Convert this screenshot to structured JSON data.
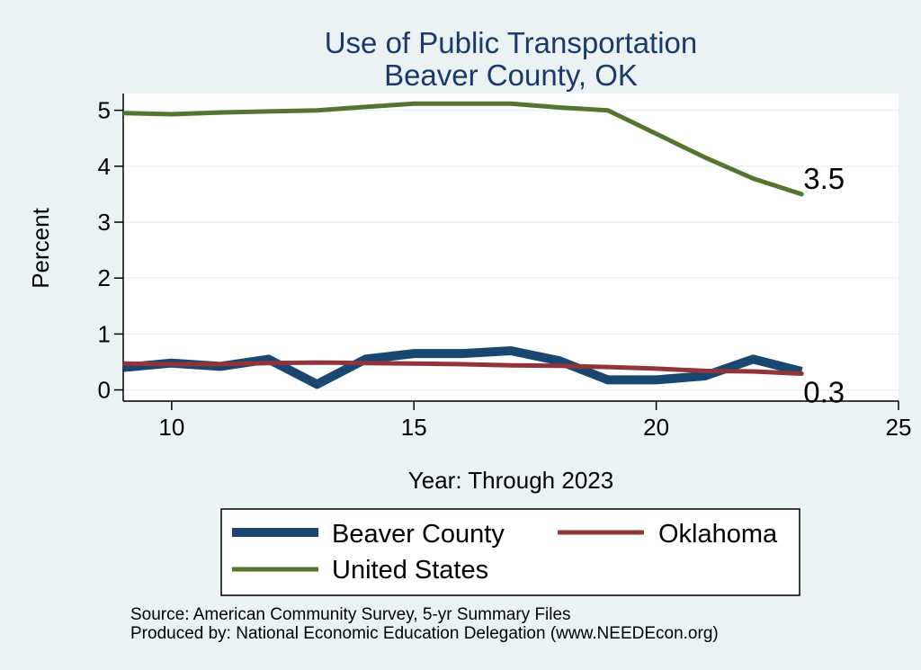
{
  "chart_data": {
    "type": "line",
    "title": "Use of Public Transportation",
    "subtitle": "Beaver County, OK",
    "xlabel": "Year: Through 2023",
    "ylabel": "Percent",
    "xlim": [
      9,
      25
    ],
    "ylim": [
      -0.2,
      5.3
    ],
    "xticks": [
      10,
      15,
      20,
      25
    ],
    "yticks": [
      0,
      1,
      2,
      3,
      4,
      5
    ],
    "grid": true,
    "x": [
      9,
      10,
      11,
      12,
      13,
      14,
      15,
      16,
      17,
      18,
      19,
      20,
      21,
      22,
      23
    ],
    "series": [
      {
        "name": "Beaver County",
        "color": "#1a476f",
        "values": [
          0.4,
          0.48,
          0.42,
          0.55,
          0.1,
          0.55,
          0.65,
          0.65,
          0.7,
          0.52,
          0.18,
          0.18,
          0.25,
          0.55,
          0.33
        ]
      },
      {
        "name": "Oklahoma",
        "color": "#90353b",
        "values": [
          0.47,
          0.46,
          0.46,
          0.48,
          0.49,
          0.48,
          0.47,
          0.46,
          0.44,
          0.43,
          0.41,
          0.38,
          0.34,
          0.33,
          0.29
        ]
      },
      {
        "name": "United States",
        "color": "#55752f",
        "values": [
          4.95,
          4.93,
          4.96,
          4.98,
          5.0,
          5.06,
          5.12,
          5.12,
          5.12,
          5.05,
          5.0,
          4.58,
          4.16,
          3.78,
          3.5
        ]
      }
    ],
    "end_labels": [
      {
        "series": "United States",
        "text": "3.5"
      },
      {
        "series": "Oklahoma",
        "text": "0.3"
      }
    ],
    "legend": {
      "placement": "bottom",
      "entries": [
        "Beaver County",
        "Oklahoma",
        "United States"
      ]
    }
  },
  "footer": {
    "source": "Source: American Community Survey, 5-yr Summary Files",
    "produced_by": "Produced by: National Economic Education Delegation (www.NEEDEcon.org)"
  }
}
